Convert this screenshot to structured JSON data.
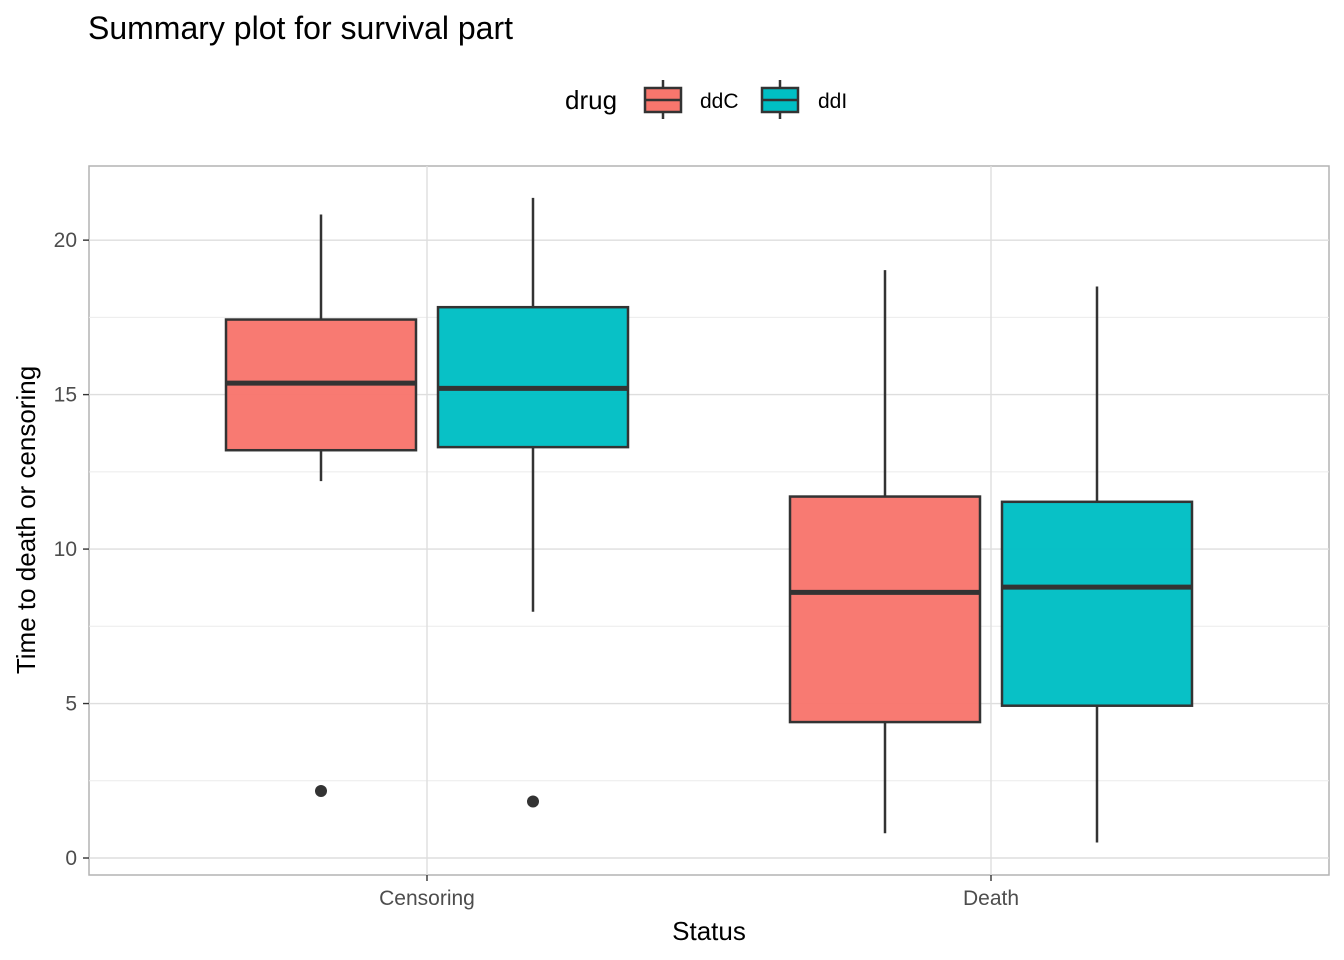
{
  "chart_data": {
    "type": "boxplot",
    "title": "Summary plot for survival part",
    "xlabel": "Status",
    "ylabel": "Time to death or censoring",
    "legend": {
      "title": "drug",
      "position": "top"
    },
    "categories": [
      "Censoring",
      "Death"
    ],
    "ylim": [
      -0.55,
      22.4
    ],
    "yticks": [
      0,
      5,
      10,
      15,
      20
    ],
    "grid": true,
    "series": [
      {
        "name": "ddC",
        "color": "#F8766D",
        "boxes": [
          {
            "category": "Censoring",
            "whisker_low": 12.2,
            "q1": 13.2,
            "median": 15.37,
            "q3": 17.43,
            "whisker_high": 20.83,
            "outliers": [
              2.17
            ]
          },
          {
            "category": "Death",
            "whisker_low": 0.8,
            "q1": 4.4,
            "median": 8.6,
            "q3": 11.7,
            "whisker_high": 19.03,
            "outliers": []
          }
        ]
      },
      {
        "name": "ddI",
        "color": "#00BFC4",
        "boxes": [
          {
            "category": "Censoring",
            "whisker_low": 7.97,
            "q1": 13.3,
            "median": 15.2,
            "q3": 17.83,
            "whisker_high": 21.37,
            "outliers": [
              1.83
            ]
          },
          {
            "category": "Death",
            "whisker_low": 0.5,
            "q1": 4.93,
            "median": 8.77,
            "q3": 11.53,
            "whisker_high": 18.5,
            "outliers": []
          }
        ]
      }
    ]
  }
}
